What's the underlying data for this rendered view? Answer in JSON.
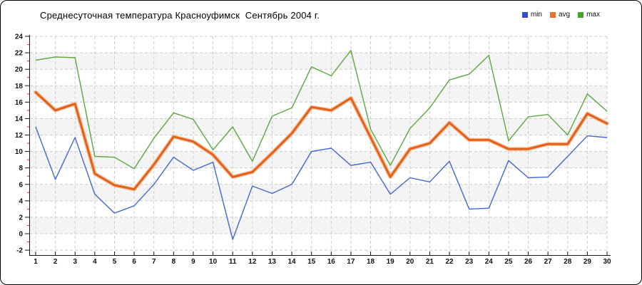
{
  "title": "Среднесуточная температура Красноуфимск  Сентябрь 2004 г.",
  "legend": [
    {
      "label": "min",
      "color": "#2b4fd2"
    },
    {
      "label": "avg",
      "color": "#e8702a"
    },
    {
      "label": "max",
      "color": "#43a427"
    }
  ],
  "colors": {
    "min_line": "#4466cf",
    "avg_line": "#e2611d",
    "avg_halo": "#f8c09a",
    "max_line": "#5ba73e",
    "band": "#f4f4f4",
    "grid": "#cccccc",
    "axis": "#111111",
    "minor_tick": "#d42a2a",
    "tick_label": "#111111"
  },
  "chart_data": {
    "type": "line",
    "title": "Среднесуточная температура Красноуфимск  Сентябрь 2004 г.",
    "xlabel": "",
    "ylabel": "",
    "x": [
      1,
      2,
      3,
      4,
      5,
      6,
      7,
      8,
      9,
      10,
      11,
      12,
      13,
      14,
      15,
      16,
      17,
      18,
      19,
      20,
      21,
      22,
      23,
      24,
      25,
      26,
      27,
      28,
      29,
      30
    ],
    "x_tick_labels": [
      "1",
      "2",
      "3",
      "4",
      "5",
      "6",
      "7",
      "8",
      "9",
      "10",
      "11",
      "12",
      "13",
      "14",
      "15",
      "16",
      "17",
      "18",
      "19",
      "20",
      "21",
      "22",
      "23",
      "24",
      "25",
      "26",
      "27",
      "28",
      "29",
      "30"
    ],
    "y_ticks": [
      24,
      22,
      20,
      18,
      16,
      14,
      12,
      10,
      8,
      6,
      4,
      2,
      0,
      -2
    ],
    "ylim": [
      -2,
      24
    ],
    "grid": "dashed",
    "banded_background": true,
    "legend_position": "top-right",
    "series": [
      {
        "name": "min",
        "values": [
          13.0,
          6.6,
          11.7,
          4.8,
          2.5,
          3.4,
          6.0,
          9.3,
          7.7,
          8.7,
          -0.7,
          5.8,
          4.9,
          6.0,
          10.0,
          10.4,
          8.3,
          8.7,
          4.8,
          6.8,
          6.3,
          8.8,
          3.0,
          3.1,
          8.9,
          6.8,
          6.9,
          9.4,
          11.9,
          11.7
        ]
      },
      {
        "name": "avg",
        "values": [
          17.2,
          15.0,
          15.8,
          7.3,
          5.9,
          5.4,
          8.4,
          11.8,
          11.2,
          9.6,
          6.9,
          7.5,
          9.8,
          12.2,
          15.4,
          15.0,
          16.5,
          11.7,
          6.9,
          10.3,
          11.0,
          13.5,
          11.4,
          11.4,
          10.3,
          10.3,
          10.9,
          10.9,
          14.6,
          13.4
        ]
      },
      {
        "name": "max",
        "values": [
          21.1,
          21.5,
          21.4,
          9.4,
          9.3,
          7.9,
          11.6,
          14.7,
          13.9,
          10.2,
          13.0,
          8.8,
          14.3,
          15.3,
          20.3,
          19.2,
          22.3,
          12.7,
          8.3,
          12.8,
          15.3,
          18.7,
          19.4,
          21.7,
          11.3,
          14.2,
          14.5,
          12.0,
          17.0,
          14.9
        ]
      }
    ]
  }
}
